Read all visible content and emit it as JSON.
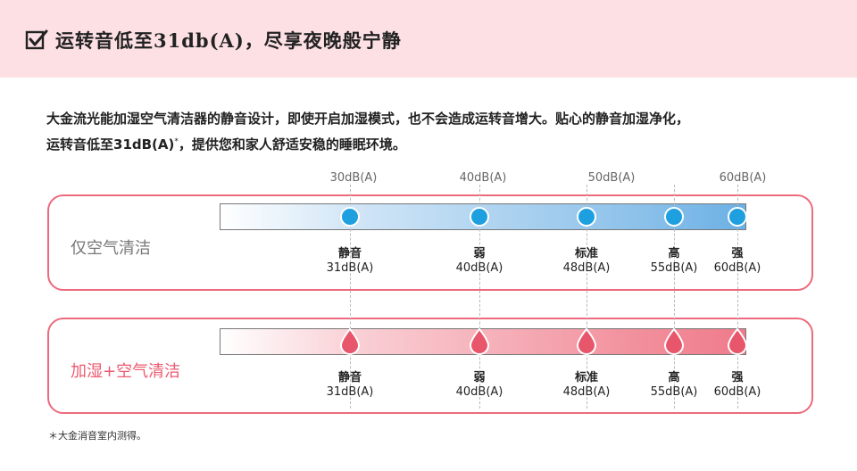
{
  "header": {
    "title": "运转音低至31db(A)，尽享夜晚般宁静",
    "check_icon": "checkbox-checked-icon",
    "background_color": "#fde0e4"
  },
  "intro": {
    "line1": "大金流光能加湿空气清洁器的静音设计，即使开启加湿模式，也不会造成运转音增大。贴心的静音加湿净化，",
    "line2_prefix": "运转音低至31dB(A)",
    "line2_sup": "*",
    "line2_suffix": "，提供您和家人舒适安稳的睡眠环境。"
  },
  "db_scale": [
    "30dB(A)",
    "40dB(A)",
    "50dB(A)",
    "60dB(A)"
  ],
  "modes": [
    {
      "label": "仅空气清洁",
      "marker_icon": "circle-dot-icon",
      "marker_color": "#1e9fe0",
      "levels": [
        {
          "name": "静音",
          "db": "31dB(A)",
          "value": 31
        },
        {
          "name": "弱",
          "db": "40dB(A)",
          "value": 40
        },
        {
          "name": "标准",
          "db": "48dB(A)",
          "value": 48
        },
        {
          "name": "高",
          "db": "55dB(A)",
          "value": 55
        },
        {
          "name": "强",
          "db": "60dB(A)",
          "value": 60
        }
      ]
    },
    {
      "label": "加湿+空气清洁",
      "marker_icon": "water-drop-icon",
      "marker_color": "#e8566b",
      "levels": [
        {
          "name": "静音",
          "db": "31dB(A)",
          "value": 31
        },
        {
          "name": "弱",
          "db": "40dB(A)",
          "value": 40
        },
        {
          "name": "标准",
          "db": "48dB(A)",
          "value": 48
        },
        {
          "name": "高",
          "db": "55dB(A)",
          "value": 55
        },
        {
          "name": "强",
          "db": "60dB(A)",
          "value": 60
        }
      ]
    }
  ],
  "footnote": "＊大金消音室内测得。"
}
